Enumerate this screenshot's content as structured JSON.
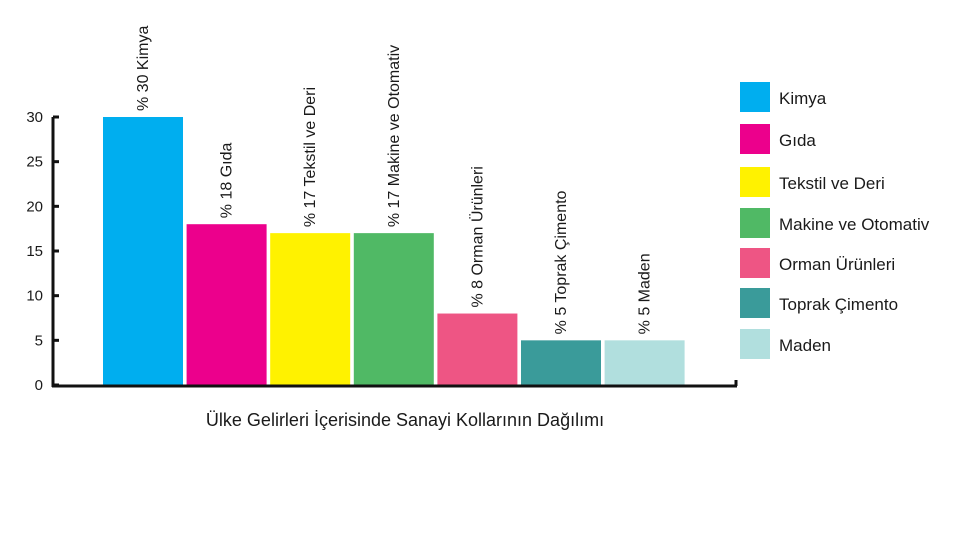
{
  "chart_data": {
    "type": "bar",
    "title": "Ülke Gelirleri İçerisinde Sanayi Kollarının Dağılımı",
    "xlabel": "",
    "ylabel": "",
    "ylim": [
      0,
      30
    ],
    "yticks": [
      0,
      5,
      10,
      15,
      20,
      25,
      30
    ],
    "grid": false,
    "legend_position": "right",
    "categories": [
      "Kimya",
      "Gıda",
      "Tekstil ve Deri",
      "Makine ve Otomativ",
      "Orman Ürünleri",
      "Toprak Çimento",
      "Maden"
    ],
    "values": [
      30,
      18,
      17,
      17,
      8,
      5,
      5
    ],
    "bar_labels": [
      "% 30 Kimya",
      "% 18 Gıda",
      "% 17 Tekstil ve Deri",
      "% 17 Makine ve Otomativ",
      "% 8 Orman Ürünleri",
      "% 5 Toprak Çimento",
      "% 5 Maden"
    ],
    "colors": [
      "#00aeef",
      "#ec008c",
      "#fff200",
      "#50b965",
      "#ee5584",
      "#3a9b9a",
      "#b1dfde"
    ],
    "legend": [
      "Kimya",
      "Gıda",
      "Tekstil ve Deri",
      "Makine ve Otomativ",
      "Orman Ürünleri",
      "Toprak Çimento",
      "Maden"
    ]
  }
}
